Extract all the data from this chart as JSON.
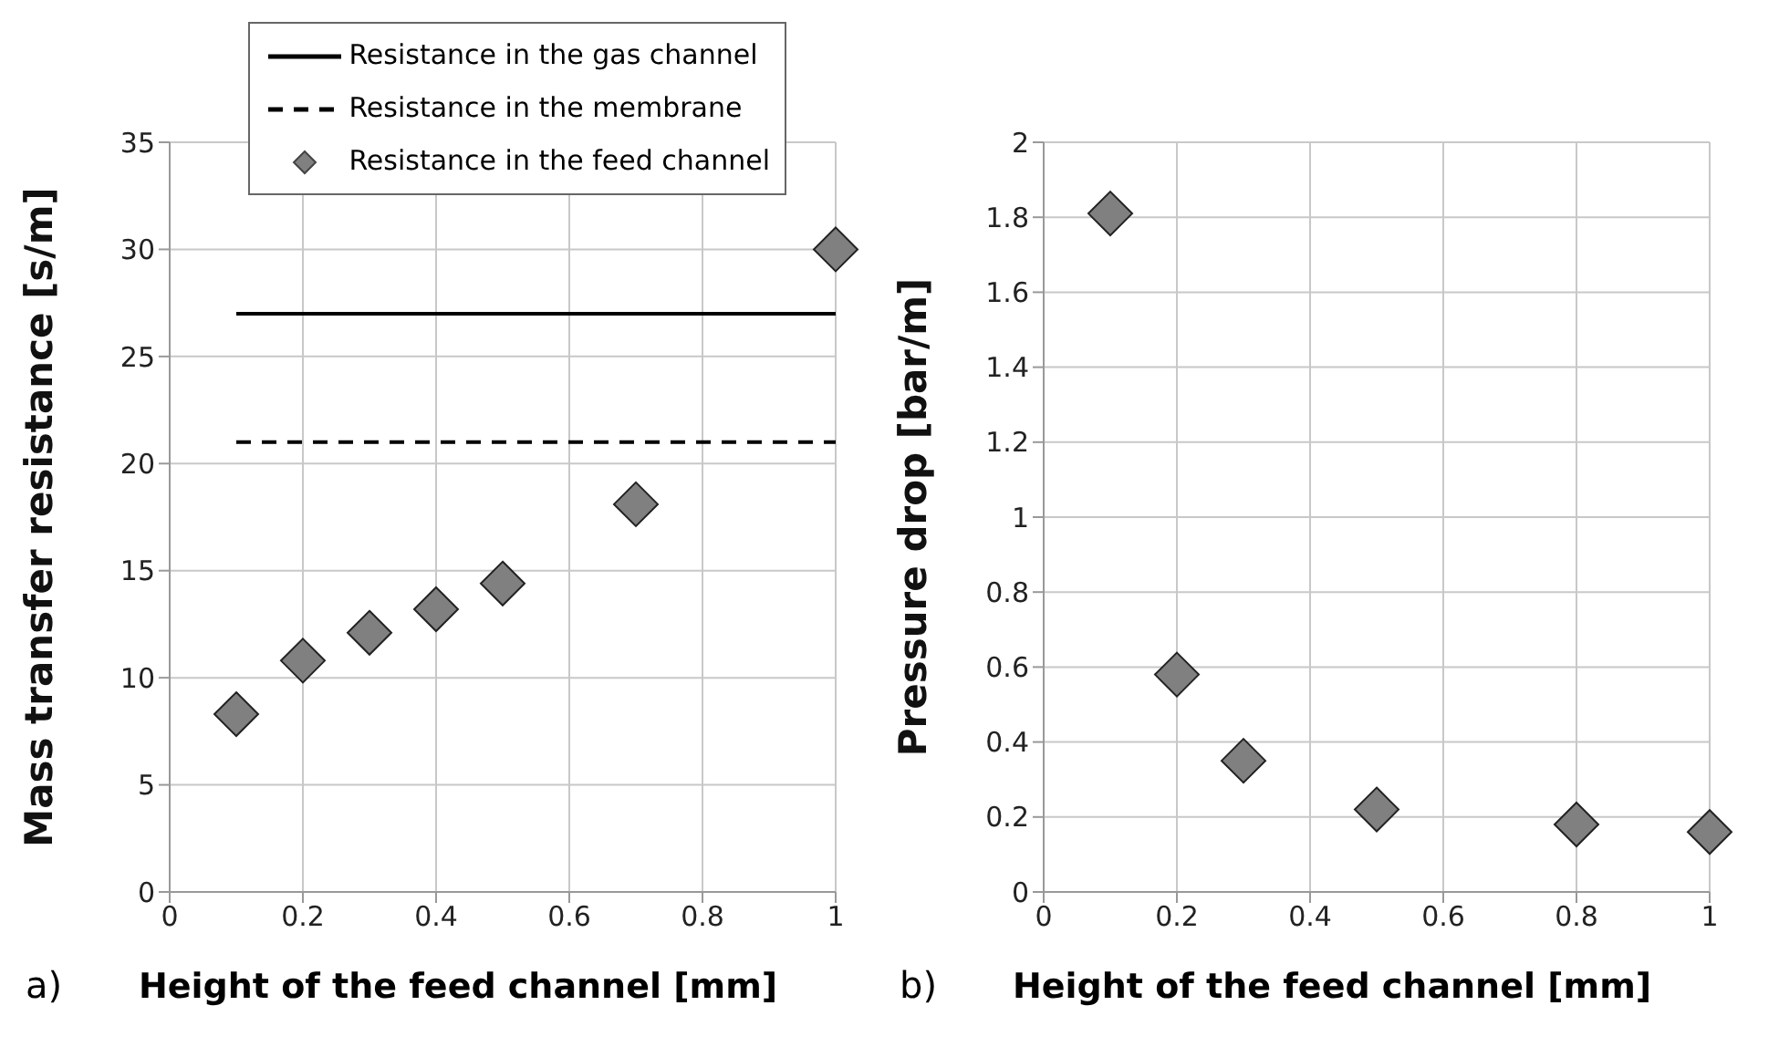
{
  "chart_data": [
    {
      "type": "scatter",
      "xlabel": "Height of the feed channel [mm]",
      "ylabel": "Mass transfer resistance [s/m]",
      "annotations": [
        "a)"
      ],
      "xlim": [
        0,
        1
      ],
      "xticks": [
        0,
        0.2,
        0.4,
        0.6,
        0.8,
        1
      ],
      "ylim": [
        0,
        35
      ],
      "yticks": [
        0,
        5,
        10,
        15,
        20,
        25,
        30,
        35
      ],
      "grid": true,
      "legend": "top right",
      "series": [
        {
          "name": "Resistance in the gas channel",
          "type": "line",
          "color": "#000000",
          "line_style": "solid",
          "marker": "none",
          "x": [
            0.1,
            1
          ],
          "values": [
            27,
            27
          ]
        },
        {
          "name": "Resistance in the membrane",
          "type": "line",
          "color": "#000000",
          "line_style": "dashed",
          "marker": "none",
          "x": [
            0.1,
            1
          ],
          "values": [
            21,
            21
          ]
        },
        {
          "name": "Resistance in the feed channel",
          "type": "scatter",
          "color": "#808080",
          "marker": "diamond",
          "x": [
            0.1,
            0.2,
            0.3,
            0.4,
            0.5,
            0.7,
            1
          ],
          "values": [
            8.3,
            10.8,
            12.1,
            13.2,
            14.4,
            18.1,
            30
          ]
        }
      ]
    },
    {
      "type": "scatter",
      "xlabel": "Height of the feed channel [mm]",
      "ylabel": "Pressure drop [bar/m]",
      "annotations": [
        "b)"
      ],
      "xlim": [
        0,
        1
      ],
      "xticks": [
        0,
        0.2,
        0.4,
        0.6,
        0.8,
        1
      ],
      "ylim": [
        0,
        2
      ],
      "yticks": [
        0,
        0.2,
        0.4,
        0.6,
        0.8,
        1,
        1.2,
        1.4,
        1.6,
        1.8,
        2
      ],
      "grid": true,
      "marker": "diamond",
      "color": "#808080",
      "x": [
        0.1,
        0.2,
        0.3,
        0.5,
        0.8,
        1
      ],
      "values": [
        1.81,
        0.58,
        0.35,
        0.22,
        0.18,
        0.16
      ]
    }
  ]
}
